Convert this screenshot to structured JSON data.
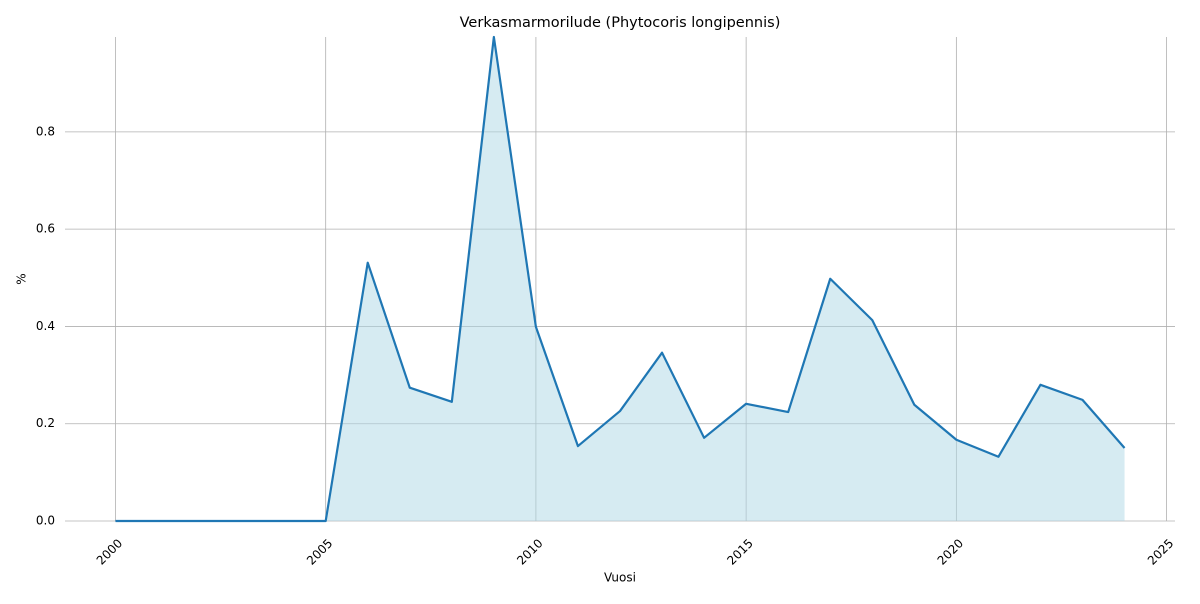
{
  "chart_data": {
    "type": "area",
    "title": "Verkasmarmorilude (Phytocoris longipennis)",
    "x_label": "Vuosi",
    "y_label": "%",
    "x": [
      2000,
      2001,
      2002,
      2003,
      2004,
      2005,
      2006,
      2007,
      2008,
      2009,
      2010,
      2011,
      2012,
      2013,
      2014,
      2015,
      2016,
      2017,
      2018,
      2019,
      2020,
      2021,
      2022,
      2023,
      2024
    ],
    "values": [
      0,
      0,
      0,
      0,
      0,
      0,
      0.531,
      0.274,
      0.245,
      0.995,
      0.399,
      0.154,
      0.226,
      0.346,
      0.171,
      0.241,
      0.224,
      0.498,
      0.413,
      0.239,
      0.167,
      0.132,
      0.28,
      0.249,
      0.15
    ],
    "color": "#1f77b4",
    "fill_color": "#add8e6",
    "xlim": [
      1998.8,
      2025.2
    ],
    "xticks": [
      2000,
      2005,
      2010,
      2015,
      2020,
      2025
    ],
    "ylim": [
      0,
      0.995
    ],
    "yticks": [
      {
        "value": 0,
        "label": "0.0"
      },
      0.2,
      0.4,
      0.6,
      0.8
    ],
    "grid": true
  }
}
